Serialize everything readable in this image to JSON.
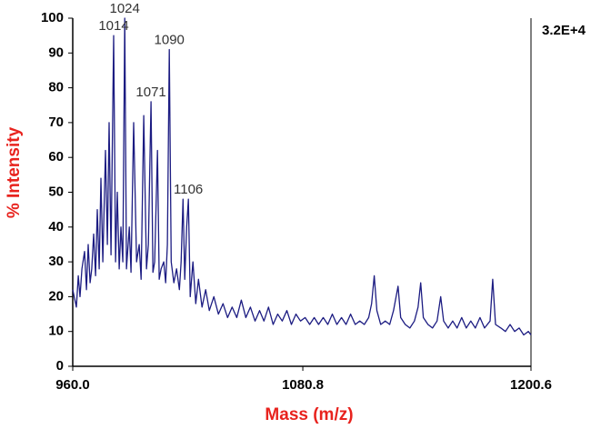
{
  "chart_data": {
    "type": "line",
    "xlabel": "Mass (m/z)",
    "ylabel": "% Intensity",
    "scale_label": "3.2E+4",
    "xlim": [
      960.0,
      1200.6
    ],
    "ylim": [
      0,
      100
    ],
    "xticks": [
      {
        "value": 960,
        "label": "960.0"
      },
      1080.8,
      1200.6
    ],
    "yticks": [
      0,
      10,
      20,
      30,
      40,
      50,
      60,
      70,
      80,
      90,
      100
    ],
    "annotations": [
      {
        "text": "1014",
        "x": 981.5,
        "y": 95
      },
      {
        "text": "1024",
        "x": 987.3,
        "y": 100
      },
      {
        "text": "1071",
        "x": 1001.1,
        "y": 76
      },
      {
        "text": "1090",
        "x": 1010.7,
        "y": 91
      },
      {
        "text": "1106",
        "x": 1020.7,
        "y": 48
      }
    ],
    "x": [
      960.0,
      961.9,
      962.9,
      963.8,
      964.8,
      966.2,
      967.2,
      968.1,
      969.1,
      970.0,
      971.0,
      972.0,
      972.9,
      973.9,
      974.8,
      975.8,
      977.2,
      978.2,
      979.1,
      980.1,
      981.5,
      982.5,
      983.4,
      984.4,
      985.3,
      986.3,
      987.3,
      988.2,
      989.7,
      990.6,
      992.0,
      993.5,
      994.9,
      995.9,
      997.3,
      998.7,
      999.7,
      1001.1,
      1002.1,
      1003.0,
      1004.5,
      1005.4,
      1006.4,
      1007.8,
      1008.8,
      1009.7,
      1010.7,
      1011.7,
      1013.1,
      1014.5,
      1016.0,
      1016.9,
      1017.9,
      1018.8,
      1019.8,
      1020.7,
      1021.7,
      1023.1,
      1024.6,
      1026.0,
      1027.9,
      1029.8,
      1031.7,
      1034.1,
      1036.5,
      1038.9,
      1041.3,
      1043.7,
      1046.1,
      1048.5,
      1050.9,
      1053.3,
      1055.7,
      1058.1,
      1060.4,
      1062.8,
      1065.2,
      1067.6,
      1070.0,
      1072.4,
      1074.8,
      1077.2,
      1079.6,
      1082.0,
      1084.4,
      1086.8,
      1089.1,
      1091.5,
      1093.9,
      1096.3,
      1098.7,
      1101.1,
      1103.5,
      1105.9,
      1108.3,
      1110.7,
      1113.1,
      1115.4,
      1116.9,
      1118.3,
      1119.7,
      1121.7,
      1124.1,
      1126.4,
      1128.4,
      1130.8,
      1132.2,
      1134.6,
      1137.0,
      1139.4,
      1141.3,
      1142.7,
      1144.1,
      1146.5,
      1148.9,
      1151.3,
      1153.2,
      1154.7,
      1157.1,
      1159.5,
      1161.8,
      1164.2,
      1166.6,
      1169.0,
      1171.4,
      1173.8,
      1176.2,
      1179.1,
      1180.5,
      1182.0,
      1184.8,
      1187.2,
      1189.6,
      1192.0,
      1194.4,
      1196.8,
      1199.2,
      1200.6
    ],
    "series": [
      {
        "color": "#1c1c82",
        "values": [
          22,
          17,
          26,
          20,
          28,
          33,
          22,
          35,
          24,
          28,
          38,
          26,
          45,
          28,
          54,
          30,
          62,
          35,
          70,
          32,
          95,
          30,
          50,
          28,
          40,
          30,
          100,
          28,
          40,
          27,
          70,
          30,
          35,
          25,
          72,
          28,
          35,
          76,
          27,
          30,
          62,
          25,
          28,
          30,
          24,
          35,
          91,
          30,
          24,
          28,
          22,
          30,
          48,
          25,
          40,
          48,
          20,
          30,
          18,
          25,
          17,
          22,
          16,
          20,
          15,
          18,
          14,
          17,
          14,
          19,
          14,
          17,
          13,
          16,
          13,
          17,
          12,
          15,
          13,
          16,
          12,
          15,
          13,
          14,
          12,
          14,
          12,
          14,
          12,
          15,
          12,
          14,
          12,
          15,
          12,
          13,
          12,
          14,
          18,
          26,
          16,
          12,
          13,
          12,
          16,
          23,
          14,
          12,
          11,
          13,
          17,
          24,
          14,
          12,
          11,
          13,
          20,
          13,
          11,
          13,
          11,
          14,
          11,
          13,
          11,
          14,
          11,
          13,
          25,
          12,
          11,
          10,
          12,
          10,
          11,
          9,
          10,
          9
        ]
      }
    ]
  }
}
